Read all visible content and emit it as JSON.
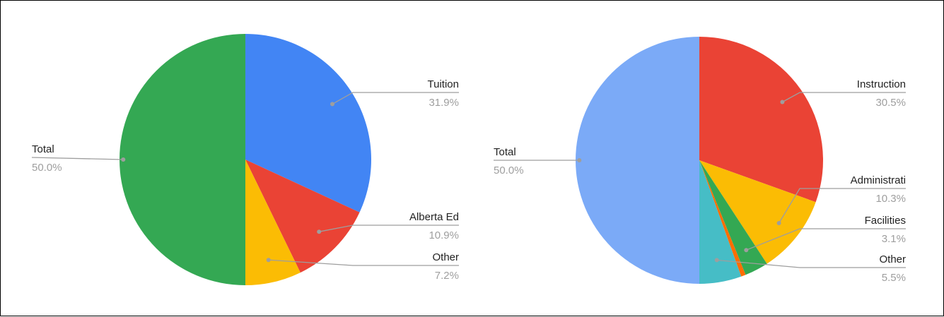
{
  "chart_data": [
    {
      "type": "pie",
      "title": "",
      "slices": [
        {
          "label": "Tuition",
          "value": 31.9,
          "display": "31.9%",
          "color": "#4285F4"
        },
        {
          "label": "Alberta Ed",
          "value": 10.9,
          "display": "10.9%",
          "color": "#EA4335"
        },
        {
          "label": "Other",
          "value": 7.2,
          "display": "7.2%",
          "color": "#FBBC04"
        },
        {
          "label": "Total",
          "value": 50.0,
          "display": "50.0%",
          "color": "#34A853"
        }
      ],
      "legend": "labels-with-leader-lines"
    },
    {
      "type": "pie",
      "title": "",
      "slices": [
        {
          "label": "Instruction",
          "value": 30.5,
          "display": "30.5%",
          "color": "#EA4335"
        },
        {
          "label": "Administrati",
          "value": 10.3,
          "display": "10.3%",
          "color": "#FBBC04"
        },
        {
          "label": "Facilities",
          "value": 3.1,
          "display": "3.1%",
          "color": "#34A853"
        },
        {
          "label": "",
          "value": 0.6,
          "display": "",
          "color": "#FF6D01"
        },
        {
          "label": "Other",
          "value": 5.5,
          "display": "5.5%",
          "color": "#46BDC6"
        },
        {
          "label": "Total",
          "value": 50.0,
          "display": "50.0%",
          "color": "#7BAAF7"
        }
      ],
      "legend": "labels-with-leader-lines"
    }
  ]
}
